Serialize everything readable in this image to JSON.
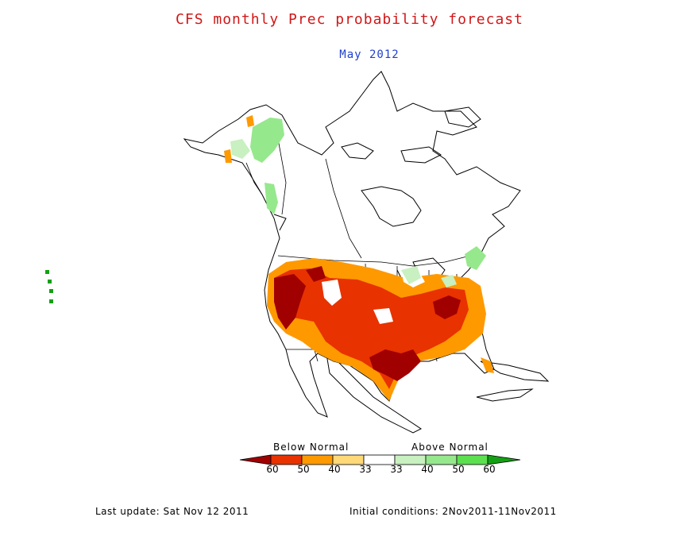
{
  "header": {
    "title": "CFS monthly Prec probability forecast",
    "period": "May 2012"
  },
  "legend": {
    "below_label": "Below Normal",
    "above_label": "Above Normal",
    "below_ticks": [
      "60",
      "50",
      "40",
      "33"
    ],
    "above_ticks": [
      "33",
      "40",
      "50",
      "60"
    ],
    "colors": {
      "below_60": "#a00000",
      "below_50": "#e83200",
      "below_40": "#ff9900",
      "below_33": "#ffd878",
      "neutral": "#ffffff",
      "above_33": "#c8f0c0",
      "above_40": "#96e88c",
      "above_50": "#5ce050",
      "above_60": "#14a014"
    }
  },
  "footer": {
    "last_update": "Last update: Sat Nov 12 2011",
    "initial_conditions": "Initial conditions: 2Nov2011-11Nov2011"
  }
}
